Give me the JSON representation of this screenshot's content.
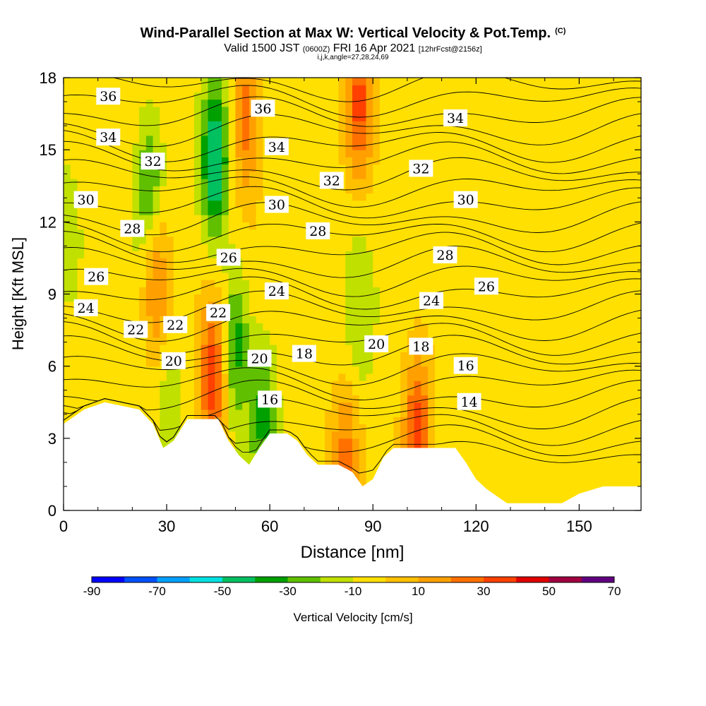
{
  "header": {
    "title": "Wind-Parallel Section at Max W: Vertical Velocity & Pot.Temp.",
    "copyright_mark": "(C)",
    "valid_prefix": "Valid 1500 JST",
    "valid_utc": "(0600Z)",
    "valid_date": "FRI 16 Apr 2021",
    "forecast_info": "[12hrFcst@2156z]",
    "indices": "i,j,k,angle=27,28,24,69"
  },
  "chart_data": {
    "type": "heatmap",
    "xlabel": "Distance [nm]",
    "ylabel": "Height [Kft MSL]",
    "xlim": [
      0,
      168
    ],
    "ylim": [
      0,
      18
    ],
    "xticks": [
      0,
      30,
      60,
      90,
      120,
      150
    ],
    "yticks": [
      0,
      3,
      6,
      9,
      12,
      15,
      18
    ],
    "grid": false,
    "field_name": "Vertical Velocity",
    "colorbar": {
      "label": "Vertical Velocity [cm/s]",
      "tick_labels": [
        "-90",
        "-70",
        "-50",
        "-30",
        "-10",
        "10",
        "30",
        "50",
        "70"
      ],
      "colors": [
        "#0000ff",
        "#0050ff",
        "#00a0ff",
        "#00e0e0",
        "#00c060",
        "#00a000",
        "#60c000",
        "#c0e000",
        "#ffe000",
        "#ffc000",
        "#ffa000",
        "#ff7000",
        "#ff4000",
        "#e00000",
        "#a00040",
        "#600080"
      ]
    },
    "theta_levels": [
      14,
      16,
      18,
      20,
      22,
      24,
      26,
      28,
      30,
      32,
      34,
      36
    ],
    "theta_labels": [
      {
        "text": "36",
        "x": 13,
        "y": 17.2
      },
      {
        "text": "34",
        "x": 13,
        "y": 15.5
      },
      {
        "text": "32",
        "x": 26,
        "y": 14.5
      },
      {
        "text": "30",
        "x": 6.5,
        "y": 12.9
      },
      {
        "text": "28",
        "x": 20,
        "y": 11.7
      },
      {
        "text": "26",
        "x": 9.5,
        "y": 9.7
      },
      {
        "text": "24",
        "x": 6.5,
        "y": 8.4
      },
      {
        "text": "22",
        "x": 21,
        "y": 7.5
      },
      {
        "text": "22",
        "x": 32.5,
        "y": 7.7
      },
      {
        "text": "20",
        "x": 32,
        "y": 6.2
      },
      {
        "text": "22",
        "x": 45,
        "y": 8.2
      },
      {
        "text": "26",
        "x": 48,
        "y": 10.5
      },
      {
        "text": "20",
        "x": 57,
        "y": 6.3
      },
      {
        "text": "16",
        "x": 60,
        "y": 4.6
      },
      {
        "text": "18",
        "x": 70,
        "y": 6.5
      },
      {
        "text": "24",
        "x": 62,
        "y": 9.1
      },
      {
        "text": "28",
        "x": 74,
        "y": 11.6
      },
      {
        "text": "30",
        "x": 62,
        "y": 12.7
      },
      {
        "text": "32",
        "x": 78,
        "y": 13.7
      },
      {
        "text": "34",
        "x": 62,
        "y": 15.1
      },
      {
        "text": "36",
        "x": 58,
        "y": 16.7
      },
      {
        "text": "32",
        "x": 104,
        "y": 14.2
      },
      {
        "text": "34",
        "x": 114,
        "y": 16.3
      },
      {
        "text": "30",
        "x": 117,
        "y": 12.9
      },
      {
        "text": "28",
        "x": 111,
        "y": 10.6
      },
      {
        "text": "26",
        "x": 123,
        "y": 9.3
      },
      {
        "text": "24",
        "x": 107,
        "y": 8.7
      },
      {
        "text": "20",
        "x": 91,
        "y": 6.9
      },
      {
        "text": "18",
        "x": 104,
        "y": 6.8
      },
      {
        "text": "16",
        "x": 117,
        "y": 6.0
      },
      {
        "text": "14",
        "x": 118,
        "y": 4.5
      }
    ],
    "terrain": [
      [
        0,
        3.6
      ],
      [
        3,
        3.9
      ],
      [
        6,
        4.2
      ],
      [
        12,
        4.5
      ],
      [
        22,
        4.2
      ],
      [
        26,
        3.6
      ],
      [
        29,
        2.6
      ],
      [
        32,
        2.9
      ],
      [
        36,
        3.8
      ],
      [
        45,
        3.8
      ],
      [
        48,
        2.9
      ],
      [
        51,
        2.3
      ],
      [
        54,
        1.9
      ],
      [
        57,
        2.6
      ],
      [
        60,
        3.2
      ],
      [
        65,
        3.2
      ],
      [
        68,
        2.9
      ],
      [
        71,
        2.3
      ],
      [
        74,
        1.9
      ],
      [
        80,
        1.9
      ],
      [
        84,
        1.6
      ],
      [
        87,
        1.0
      ],
      [
        90,
        1.3
      ],
      [
        93,
        2.2
      ],
      [
        96,
        2.6
      ],
      [
        105,
        2.6
      ],
      [
        114,
        2.6
      ],
      [
        117,
        2.0
      ],
      [
        120,
        1.3
      ],
      [
        123,
        0.9
      ],
      [
        126,
        0.6
      ],
      [
        129,
        0.3
      ],
      [
        137,
        0.3
      ],
      [
        145,
        0.3
      ],
      [
        150,
        0.7
      ],
      [
        157,
        1.0
      ],
      [
        168,
        1.0
      ]
    ],
    "updraft_cores": [
      {
        "x": 27,
        "y": 9.5,
        "w": 3.0
      },
      {
        "x": 43.5,
        "y": 5.5,
        "w": 4.2
      },
      {
        "x": 53,
        "y": 16.5,
        "w": 3.2
      },
      {
        "x": 86,
        "y": 16.8,
        "w": 3.6
      },
      {
        "x": 82,
        "y": 2.3,
        "w": 2.6
      },
      {
        "x": 103,
        "y": 3.3,
        "w": 4.0
      }
    ],
    "downdraft_cores": [
      {
        "x": 44,
        "y": 14.5,
        "w": -4.8
      },
      {
        "x": 50,
        "y": 7.0,
        "w": -3.2
      },
      {
        "x": 25,
        "y": 13.5,
        "w": -2.7
      },
      {
        "x": 58,
        "y": 4.0,
        "w": -2.8
      },
      {
        "x": 86,
        "y": 8.0,
        "w": -1.3
      },
      {
        "x": 31,
        "y": 4.5,
        "w": -1.3
      },
      {
        "x": 1,
        "y": 11.5,
        "w": -1.2
      }
    ]
  }
}
